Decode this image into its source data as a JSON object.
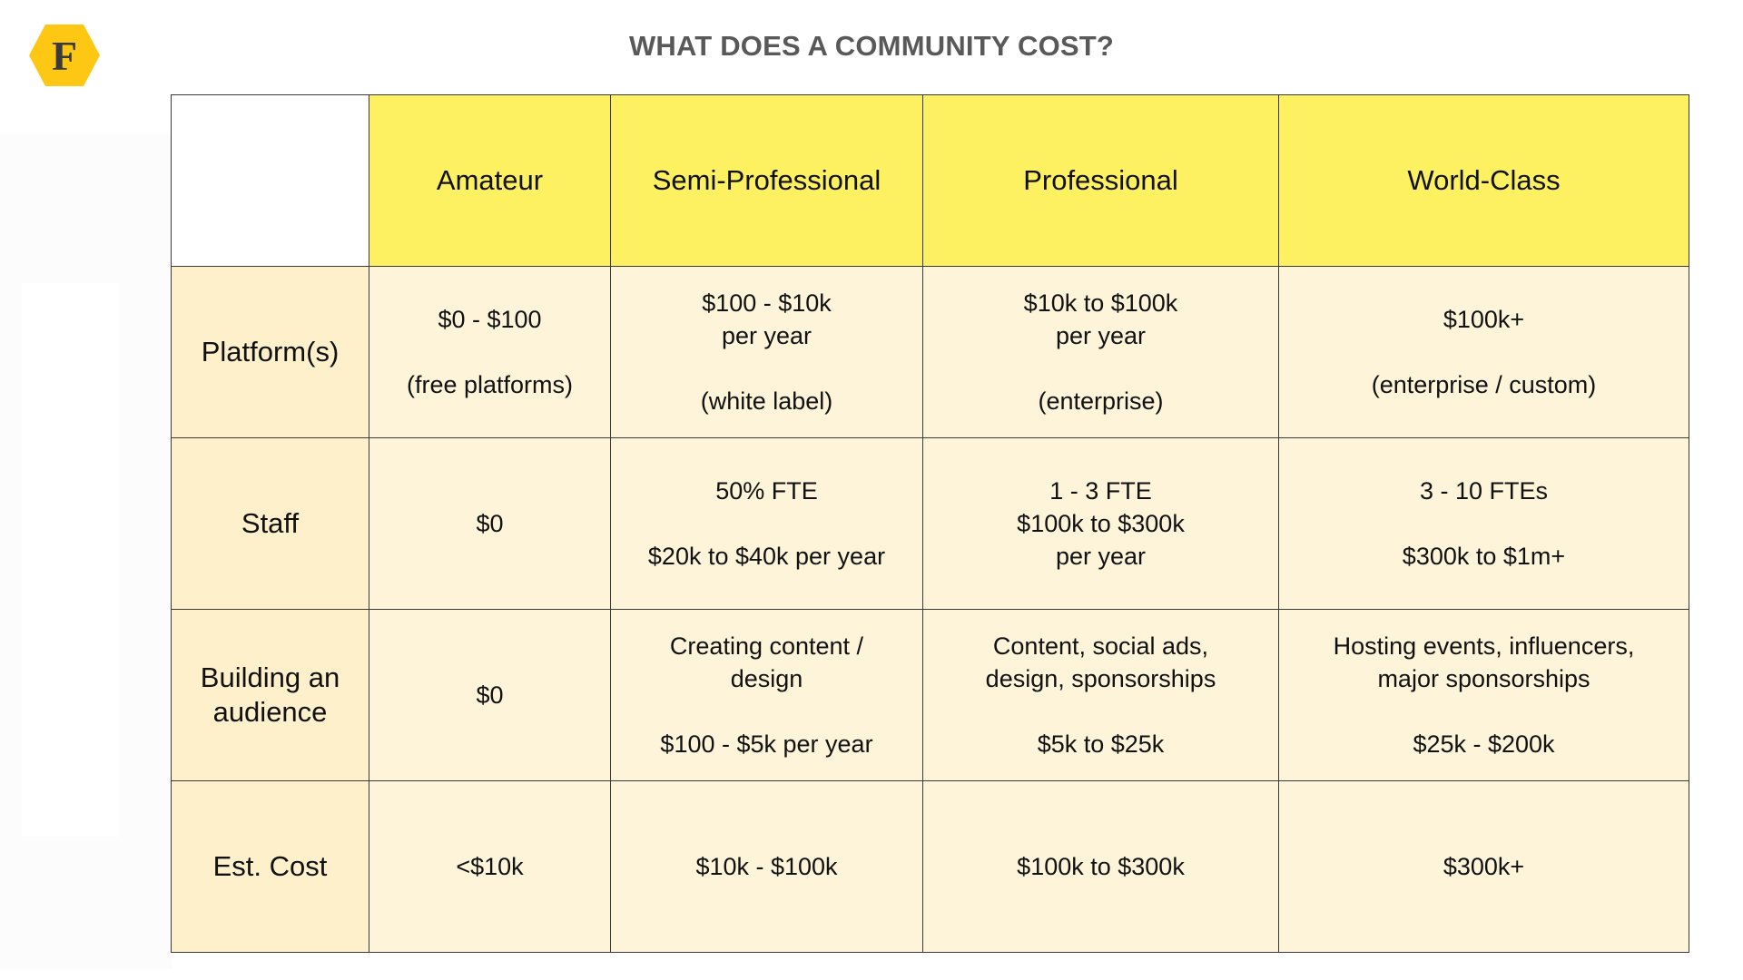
{
  "title": "WHAT DOES A COMMUNITY COST?",
  "logo": {
    "letter": "F",
    "icon": "hexagon-logo-icon",
    "color": "#fec713"
  },
  "colors": {
    "header_bg": "#fdf061",
    "row_header_bg": "#fdf0cb",
    "cell_bg": "#fdf4d9"
  },
  "columns": [
    "Amateur",
    "Semi-Professional",
    "Professional",
    "World-Class"
  ],
  "rows": [
    {
      "label": "Platform(s)",
      "cells": [
        {
          "lines": [
            "$0 - $100",
            "",
            "(free platforms)"
          ]
        },
        {
          "lines": [
            "$100 - $10k",
            "per year",
            "",
            "(white label)"
          ]
        },
        {
          "lines": [
            "$10k to $100k",
            "per year",
            "",
            "(enterprise)"
          ]
        },
        {
          "lines": [
            "$100k+",
            "",
            "(enterprise / custom)"
          ]
        }
      ]
    },
    {
      "label": "Staff",
      "cells": [
        {
          "lines": [
            "$0"
          ]
        },
        {
          "lines": [
            "50% FTE",
            "",
            "$20k to $40k per year"
          ]
        },
        {
          "lines": [
            "1 - 3 FTE",
            "$100k to $300k",
            "per year"
          ]
        },
        {
          "lines": [
            "3 - 10 FTEs",
            "",
            "$300k to $1m+"
          ]
        }
      ]
    },
    {
      "label": "Building an audience",
      "cells": [
        {
          "lines": [
            "$0"
          ]
        },
        {
          "lines": [
            "Creating content /",
            "design",
            "",
            "$100 - $5k per year"
          ]
        },
        {
          "lines": [
            "Content, social ads,",
            "design, sponsorships",
            "",
            "$5k to $25k"
          ]
        },
        {
          "lines": [
            "Hosting events, influencers,",
            "major sponsorships",
            "",
            "$25k - $200k"
          ]
        }
      ]
    },
    {
      "label": "Est. Cost",
      "cells": [
        {
          "lines": [
            "<$10k"
          ]
        },
        {
          "lines": [
            "$10k - $100k"
          ]
        },
        {
          "lines": [
            "$100k to $300k"
          ]
        },
        {
          "lines": [
            "$300k+"
          ]
        }
      ]
    }
  ]
}
